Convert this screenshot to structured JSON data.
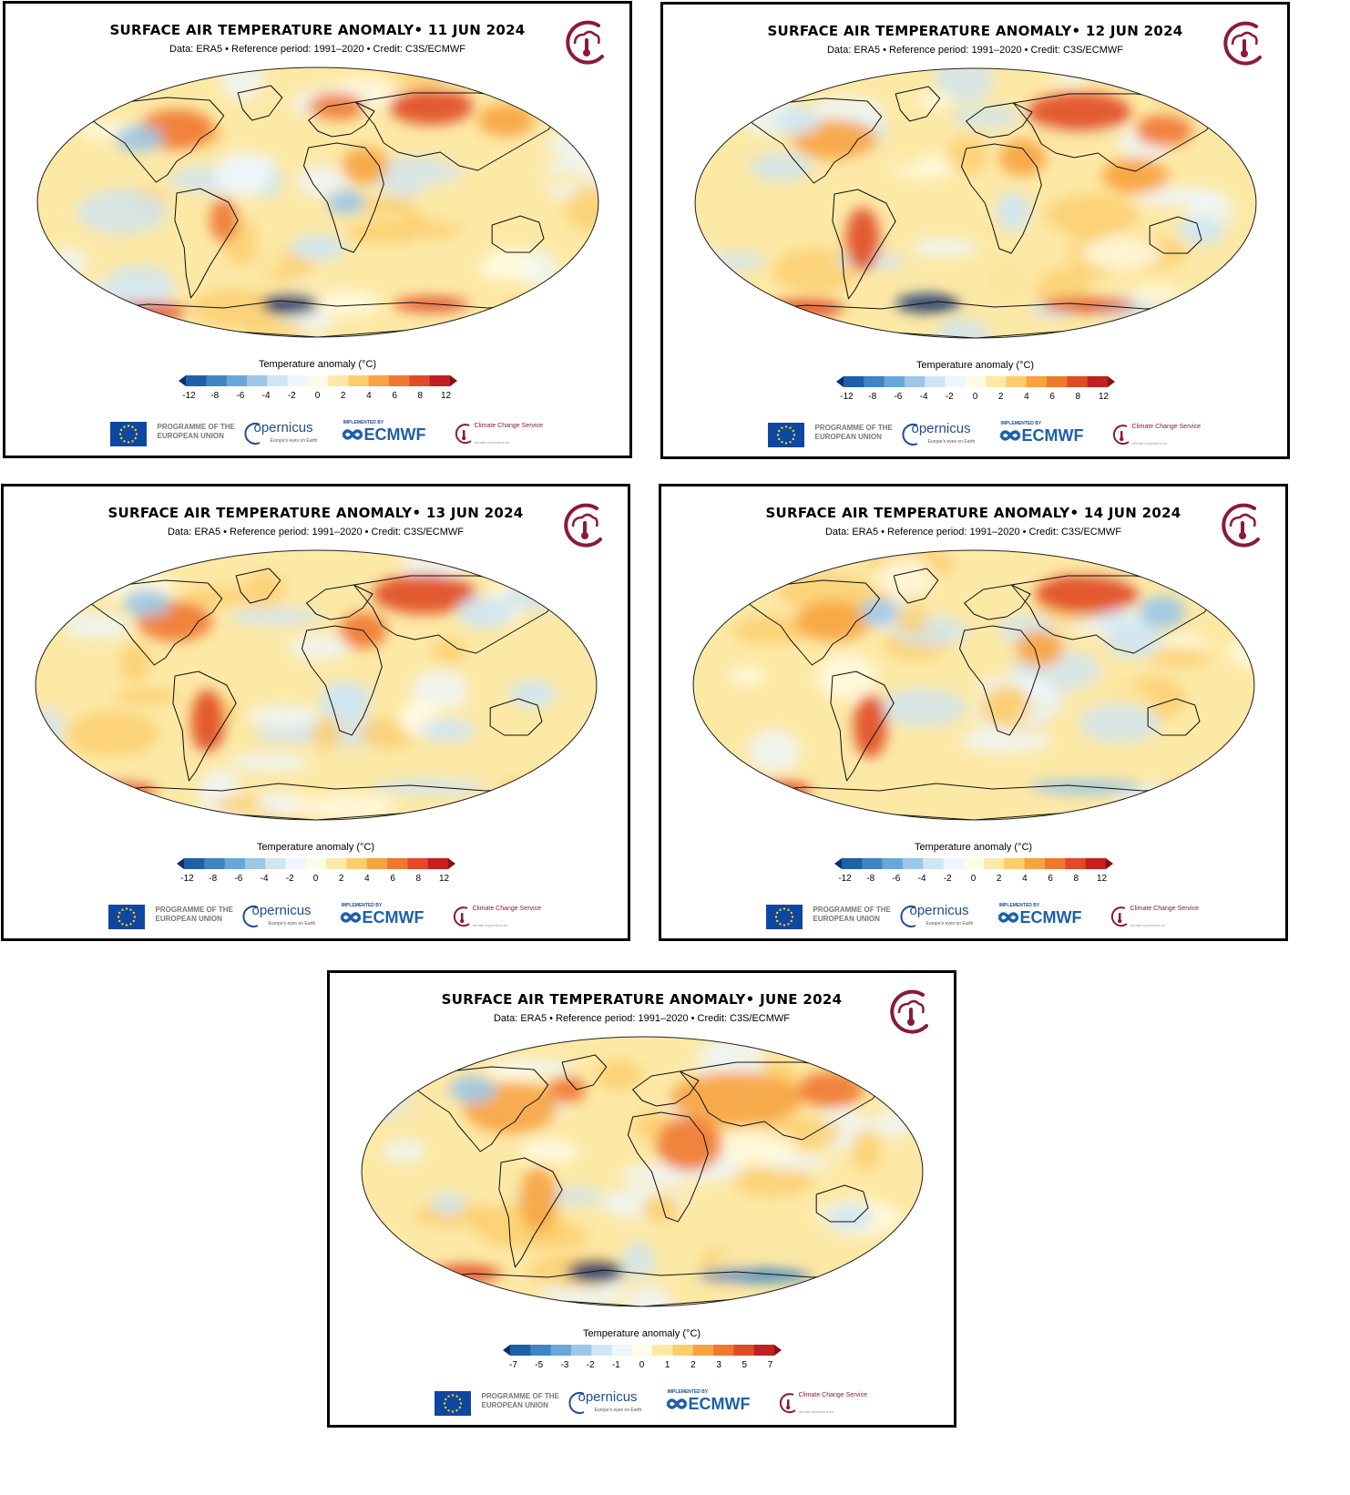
{
  "panels": [
    {
      "title": "SURFACE AIR TEMPERATURE ANOMALY• 11 JUN 2024",
      "subtitle": "Data: ERA5 • Reference period: 1991–2020 • Credit: C3S/ECMWF",
      "colorbar_label": "Temperature anomaly (°C)",
      "ticks": [
        "-12",
        "-8",
        "-6",
        "-4",
        "-2",
        "0",
        "2",
        "4",
        "6",
        "8",
        "12"
      ]
    },
    {
      "title": "SURFACE AIR TEMPERATURE ANOMALY• 12 JUN 2024",
      "subtitle": "Data: ERA5 • Reference period: 1991–2020 • Credit: C3S/ECMWF",
      "colorbar_label": "Temperature anomaly (°C)",
      "ticks": [
        "-12",
        "-8",
        "-6",
        "-4",
        "-2",
        "0",
        "2",
        "4",
        "6",
        "8",
        "12"
      ]
    },
    {
      "title": "SURFACE AIR TEMPERATURE ANOMALY• 13 JUN 2024",
      "subtitle": "Data: ERA5 • Reference period: 1991–2020 • Credit: C3S/ECMWF",
      "colorbar_label": "Temperature anomaly (°C)",
      "ticks": [
        "-12",
        "-8",
        "-6",
        "-4",
        "-2",
        "0",
        "2",
        "4",
        "6",
        "8",
        "12"
      ]
    },
    {
      "title": "SURFACE AIR TEMPERATURE ANOMALY• 14 JUN 2024",
      "subtitle": "Data: ERA5 • Reference period: 1991–2020 • Credit: C3S/ECMWF",
      "colorbar_label": "Temperature anomaly (°C)",
      "ticks": [
        "-12",
        "-8",
        "-6",
        "-4",
        "-2",
        "0",
        "2",
        "4",
        "6",
        "8",
        "12"
      ]
    },
    {
      "title": "SURFACE AIR TEMPERATURE ANOMALY• JUNE 2024",
      "subtitle": "Data: ERA5 • Reference period: 1991–2020 • Credit: C3S/ECMWF",
      "colorbar_label": "Temperature anomaly (°C)",
      "ticks": [
        "-7",
        "-5",
        "-3",
        "-2",
        "-1",
        "0",
        "1",
        "2",
        "3",
        "5",
        "7"
      ]
    }
  ],
  "footer": {
    "eu_text": "PROGRAMME OF THE EUROPEAN UNION",
    "copernicus": "opernicus",
    "copernicus_sub": "Europe's eyes on Earth",
    "implemented_by": "IMPLEMENTED BY",
    "ecmwf": "ECMWF",
    "ccs_text": "Climate Change Service",
    "ccs_url": "climate.copernicus.eu"
  },
  "colors": {
    "colorbar": [
      "#08306b",
      "#1f5fa8",
      "#3f84c4",
      "#6aa7d6",
      "#9cc7e6",
      "#cfe5f3",
      "#eef6fb",
      "#fffbe6",
      "#fde9a6",
      "#fbcd6d",
      "#f7a340",
      "#ef7830",
      "#e04b25",
      "#c02020",
      "#8c0c15"
    ],
    "brand": "#8a1a3a",
    "ecmwf_blue": "#1f5fa8"
  }
}
